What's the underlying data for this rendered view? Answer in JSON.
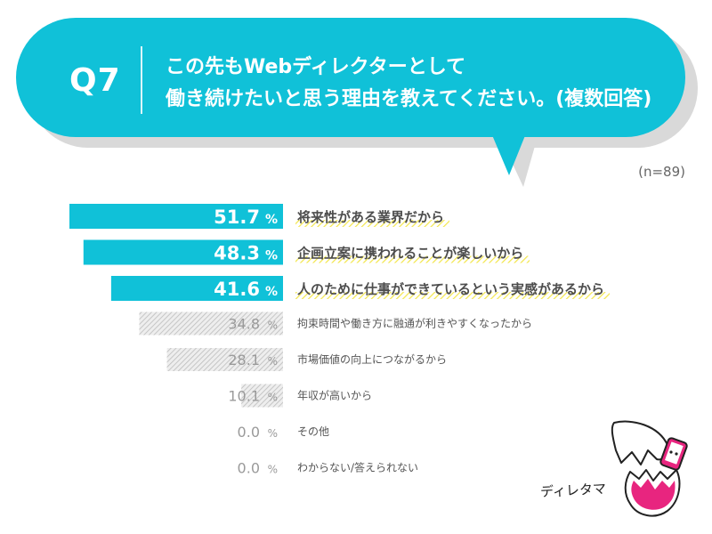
{
  "question": {
    "number": "Q7",
    "text_line1": "この先もWebディレクターとして",
    "text_line2": "働き続けたいと思う理由を教えてください。(複数回答)"
  },
  "sample_size": "(n=89)",
  "colors": {
    "accent": "#10c1d8",
    "highlight": "#f3e64a",
    "muted_bar": "#cfcfcf",
    "text_dark": "#4d4d4d",
    "text_muted": "#9a9a9a"
  },
  "chart_data": {
    "type": "bar",
    "orientation": "horizontal",
    "unit": "%",
    "xlim": [
      0,
      55
    ],
    "categories": [
      "将来性がある業界だから",
      "企画立案に携われることが楽しいから",
      "人のために仕事ができているという実感があるから",
      "拘束時間や働き方に融通が利きやすくなったから",
      "市場価値の向上につながるから",
      "年収が高いから",
      "その他",
      "わからない/答えられない"
    ],
    "values": [
      51.7,
      48.3,
      41.6,
      34.8,
      28.1,
      10.1,
      0.0,
      0.0
    ],
    "value_labels": [
      "51.7",
      "48.3",
      "41.6",
      "34.8",
      "28.1",
      "10.1",
      "0.0",
      "0.0"
    ],
    "highlighted_top": 3
  },
  "mascot": {
    "label": "ディレタマ",
    "icon": "egg-mascot-icon"
  }
}
